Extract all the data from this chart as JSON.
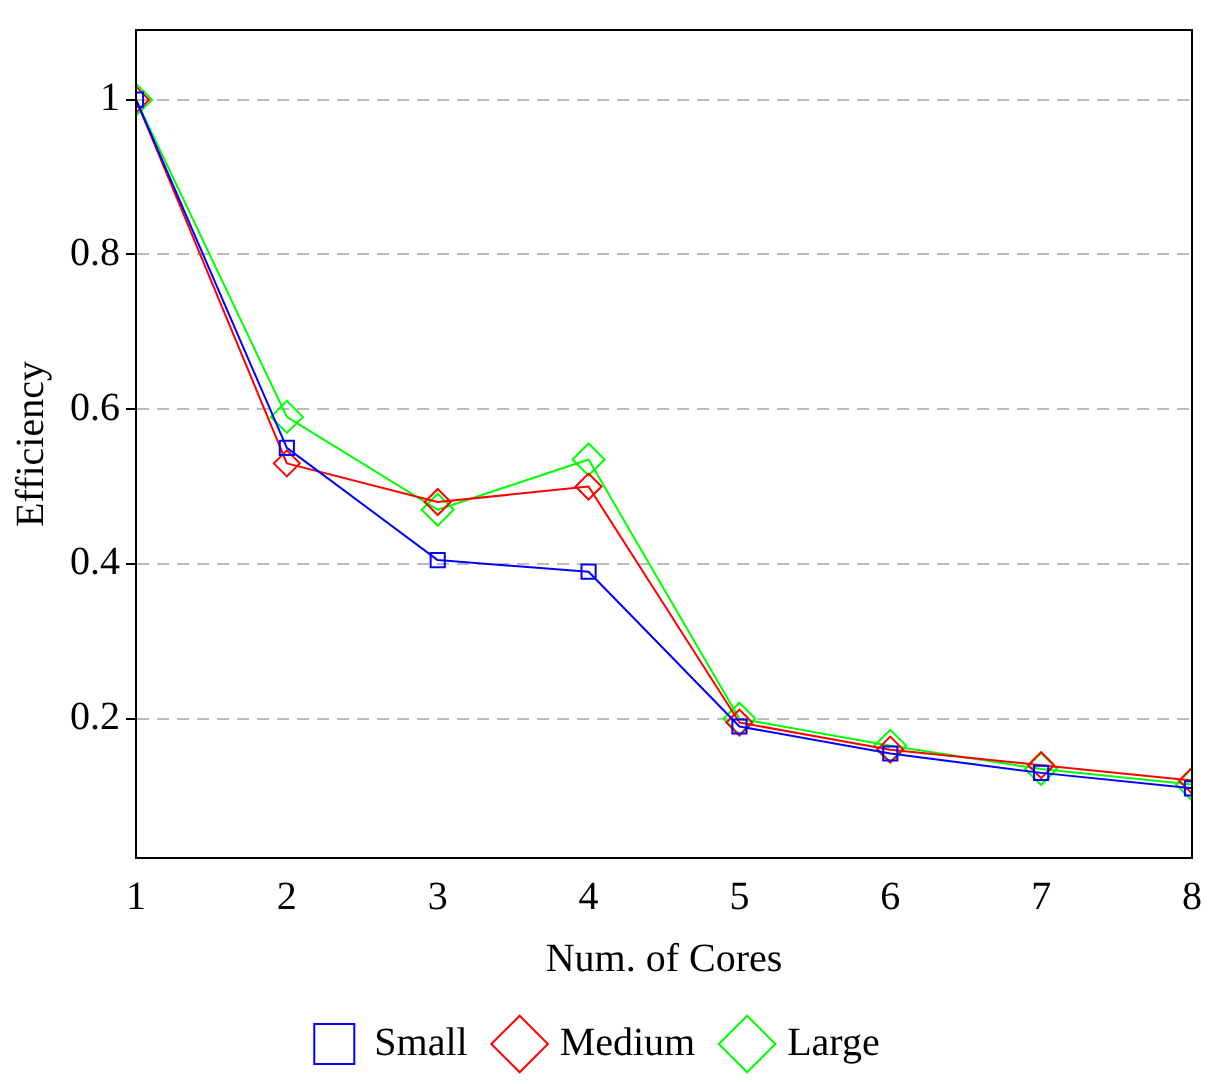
{
  "chart_data": {
    "type": "line",
    "xlabel": "Num. of Cores",
    "ylabel": "Efficiency",
    "x": [
      1,
      2,
      3,
      4,
      5,
      6,
      7,
      8
    ],
    "series": [
      {
        "name": "Small",
        "color": "#0000ff",
        "marker": "square",
        "values": [
          1,
          0.55,
          0.405,
          0.39,
          0.19,
          0.155,
          0.13,
          0.11
        ]
      },
      {
        "name": "Medium",
        "color": "#ff0000",
        "marker": "diamond",
        "values": [
          1,
          0.53,
          0.48,
          0.5,
          0.195,
          0.16,
          0.14,
          0.12
        ]
      },
      {
        "name": "Large",
        "color": "#00ff00",
        "marker": "diamond",
        "values": [
          1,
          0.59,
          0.47,
          0.535,
          0.2,
          0.165,
          0.135,
          0.115
        ]
      }
    ],
    "xlim": [
      1,
      8
    ],
    "xticks": [
      1,
      2,
      3,
      4,
      5,
      6,
      7,
      8
    ],
    "ylim": [
      0.02,
      1.09
    ],
    "yticks": [
      0.2,
      0.4,
      0.6,
      0.8,
      1
    ],
    "grid": "y",
    "legend": "bottom",
    "line_style": "solid"
  }
}
